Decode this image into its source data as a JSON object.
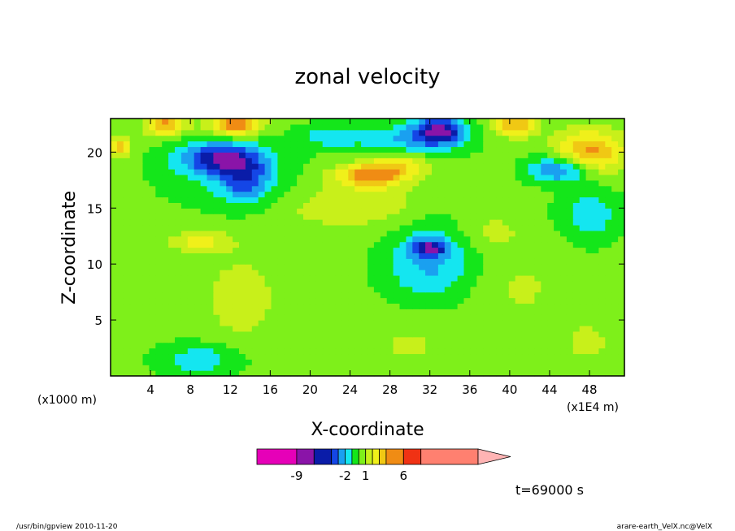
{
  "chart_data": {
    "type": "heatmap",
    "title": "zonal velocity",
    "xlabel": "X-coordinate",
    "ylabel": "Z-coordinate",
    "x_unit_left": "(x1000 m)",
    "x_unit_right": "(x1E4 m)",
    "xlim": [
      0,
      51.5
    ],
    "ylim": [
      0,
      23
    ],
    "x_ticks": [
      4,
      8,
      12,
      16,
      20,
      24,
      28,
      32,
      36,
      40,
      44,
      48
    ],
    "y_ticks": [
      5,
      10,
      15,
      20
    ],
    "levels": [
      -15,
      -9,
      -5,
      -4,
      -3,
      -2,
      -1,
      0,
      1,
      2,
      3,
      4,
      6,
      8,
      10,
      18
    ],
    "colors": [
      "#e600b8",
      "#8a14a8",
      "#0a1ca8",
      "#1446e6",
      "#1aa0f0",
      "#14e6f0",
      "#14e61a",
      "#7ef01a",
      "#c8f01a",
      "#f0f01a",
      "#f0c814",
      "#f08c14",
      "#f03214",
      "#ff8070",
      "#ffb4b4"
    ],
    "colorbar_labels": [
      {
        "value": -9,
        "text": "-9"
      },
      {
        "value": -2,
        "text": "-2"
      },
      {
        "value": 1,
        "text": "1"
      },
      {
        "value": 6,
        "text": "6"
      }
    ],
    "blobs": [
      {
        "x": 32,
        "y": 11.5,
        "sx": 1.8,
        "sy": 0.8,
        "v": -4
      },
      {
        "x": 32,
        "y": 10,
        "sx": 4.5,
        "sy": 3.5,
        "v": -2.5
      },
      {
        "x": 11,
        "y": 19.5,
        "sx": 4,
        "sy": 1.4,
        "v": -4.5
      },
      {
        "x": 13.5,
        "y": 17.5,
        "sx": 2.5,
        "sy": 2,
        "v": -3
      },
      {
        "x": 12,
        "y": 18,
        "sx": 7,
        "sy": 3,
        "v": -1.2
      },
      {
        "x": 33,
        "y": 22,
        "sx": 2.5,
        "sy": 1.2,
        "v": -5
      },
      {
        "x": 30,
        "y": 21,
        "sx": 5,
        "sy": 1.5,
        "v": -2.5
      },
      {
        "x": 22,
        "y": 21.5,
        "sx": 3,
        "sy": 1,
        "v": -2
      },
      {
        "x": 45,
        "y": 18.5,
        "sx": 3,
        "sy": 1.2,
        "v": -4
      },
      {
        "x": 48,
        "y": 14.5,
        "sx": 3,
        "sy": 2.5,
        "v": -2
      },
      {
        "x": 9,
        "y": 1.5,
        "sx": 4,
        "sy": 1.5,
        "v": -2
      },
      {
        "x": 26,
        "y": 18,
        "sx": 3.5,
        "sy": 1,
        "v": 4
      },
      {
        "x": 29,
        "y": 19,
        "sx": 3,
        "sy": 1.2,
        "v": 2.5
      },
      {
        "x": 26,
        "y": 15.5,
        "sx": 5,
        "sy": 2,
        "v": 1.5
      },
      {
        "x": 48,
        "y": 20,
        "sx": 3.5,
        "sy": 2,
        "v": 4
      },
      {
        "x": 12.5,
        "y": 22.5,
        "sx": 2.5,
        "sy": 1,
        "v": 5
      },
      {
        "x": 5.5,
        "y": 22.5,
        "sx": 2,
        "sy": 1,
        "v": 4
      },
      {
        "x": 1,
        "y": 20.5,
        "sx": 1,
        "sy": 1,
        "v": 3
      },
      {
        "x": 40.5,
        "y": 22.5,
        "sx": 2,
        "sy": 1,
        "v": 4
      },
      {
        "x": 9,
        "y": 12,
        "sx": 3,
        "sy": 1,
        "v": 2
      },
      {
        "x": 13,
        "y": 7,
        "sx": 4,
        "sy": 4,
        "v": 1.2
      },
      {
        "x": 30,
        "y": 3,
        "sx": 6,
        "sy": 3,
        "v": 0.8
      },
      {
        "x": 41,
        "y": 8,
        "sx": 5,
        "sy": 4,
        "v": 0.8
      },
      {
        "x": 38,
        "y": 13,
        "sx": 3,
        "sy": 1.5,
        "v": 1
      },
      {
        "x": 48,
        "y": 3,
        "sx": 4,
        "sy": 3,
        "v": 0.8
      },
      {
        "x": 20,
        "y": 15,
        "sx": 5,
        "sy": 2,
        "v": 0.7
      }
    ],
    "base_value": 0.3
  },
  "footer": {
    "left": "/usr/bin/gpview   2010-11-20",
    "right": "arare-earth_VelX.nc@VelX",
    "time": "t=69000 s"
  }
}
